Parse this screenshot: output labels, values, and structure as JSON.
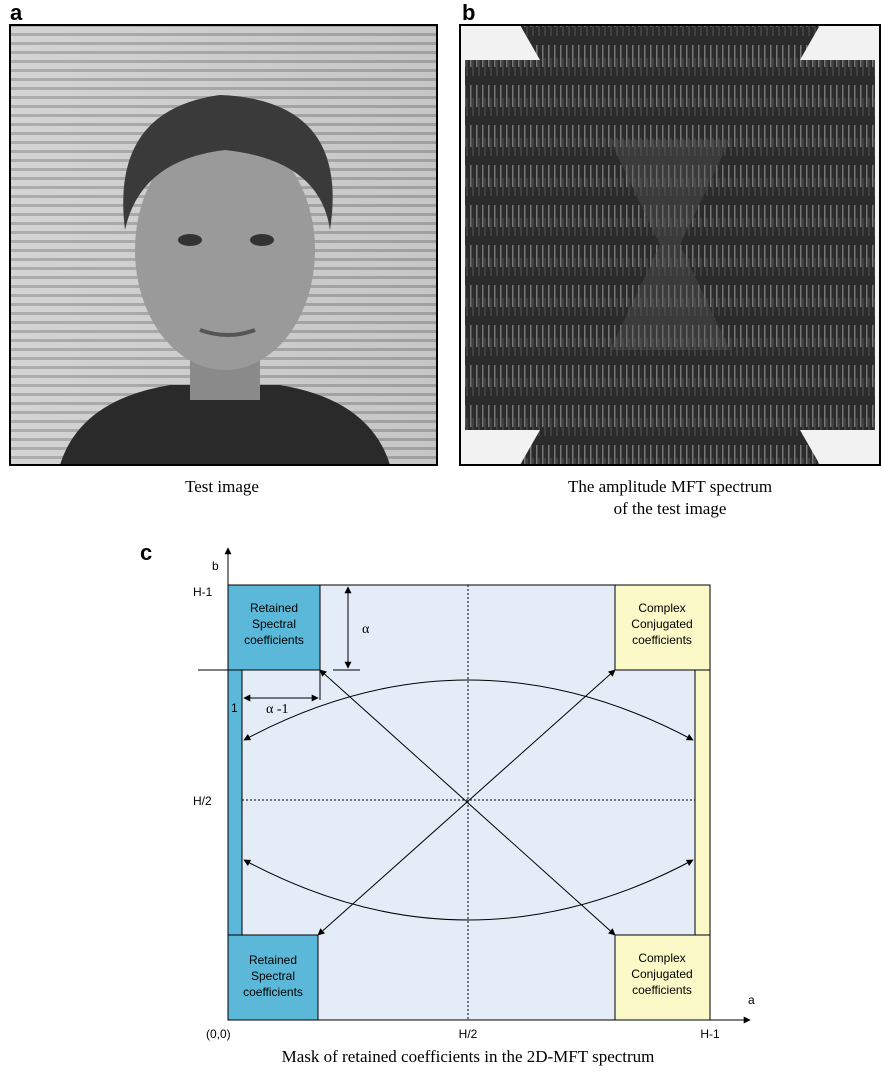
{
  "panels": [
    {
      "label": "a",
      "caption": [
        "Test image"
      ]
    },
    {
      "label": "b",
      "caption": [
        "The amplitude MFT spectrum",
        "of the test image"
      ]
    },
    {
      "label": "c",
      "caption": [
        "Mask of retained coefficients in the 2D-MFT spectrum"
      ]
    }
  ],
  "diagram": {
    "boxes": [
      {
        "lines": [
          "Retained",
          "Spectral",
          "coefficients"
        ]
      },
      {
        "lines": [
          "Complex",
          "Conjugated",
          "coefficients"
        ]
      },
      {
        "lines": [
          "Retained",
          "Spectral",
          "coefficients"
        ]
      },
      {
        "lines": [
          "Complex",
          "Conjugated",
          "coefficients"
        ]
      }
    ],
    "y_axis": {
      "label": "b",
      "ticks": [
        "H-1",
        "H/2"
      ]
    },
    "x_axis": {
      "label": "a",
      "ticks": [
        "(0,0)",
        "H/2",
        "H-1"
      ]
    },
    "alpha": "α",
    "alpha_minus_one": "α -1",
    "one": "1"
  }
}
